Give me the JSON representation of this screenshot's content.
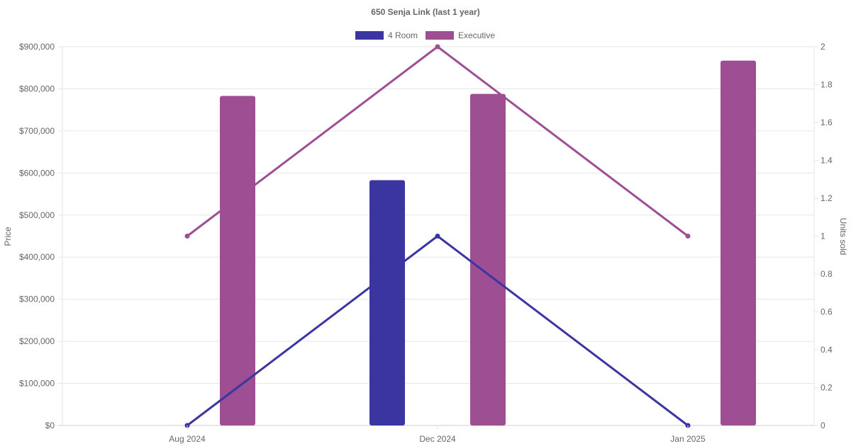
{
  "chart_data": {
    "type": "bar",
    "title": "650 Senja Link (last 1 year)",
    "categories": [
      "Aug 2024",
      "Dec 2024",
      "Jan 2025"
    ],
    "y_left": {
      "label": "Price",
      "range": [
        0,
        900000
      ],
      "ticks": [
        "$0",
        "$100,000",
        "$200,000",
        "$300,000",
        "$400,000",
        "$500,000",
        "$600,000",
        "$700,000",
        "$800,000",
        "$900,000"
      ]
    },
    "y_right": {
      "label": "Units sold",
      "range": [
        0,
        2
      ],
      "ticks": [
        "0",
        "0.2",
        "0.4",
        "0.6",
        "0.8",
        "1",
        "1.2",
        "1.4",
        "1.6",
        "1.8",
        "2"
      ]
    },
    "legend": {
      "position": "top",
      "items": [
        {
          "name": "4 Room",
          "color": "#3a35a1"
        },
        {
          "name": "Executive",
          "color": "#9e4f93"
        }
      ]
    },
    "grid": true,
    "bar_series": [
      {
        "name": "4 Room",
        "color": "#3a35a1",
        "axis": "left",
        "values": [
          null,
          583000,
          null
        ]
      },
      {
        "name": "Executive",
        "color": "#9e4f93",
        "axis": "left",
        "values": [
          783000,
          788000,
          867000
        ]
      }
    ],
    "line_series": [
      {
        "name": "4 Room",
        "color": "#3a35a1",
        "axis": "right",
        "values": [
          0,
          1,
          0
        ]
      },
      {
        "name": "Executive",
        "color": "#9e4f93",
        "axis": "right",
        "values": [
          1,
          2,
          1
        ]
      }
    ]
  }
}
